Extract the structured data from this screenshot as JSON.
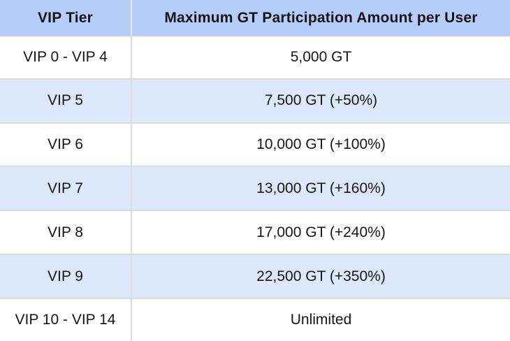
{
  "chart_data": {
    "type": "table",
    "title": "",
    "columns": [
      "VIP Tier",
      "Maximum GT Participation Amount per User"
    ],
    "rows": [
      [
        "VIP 0 - VIP 4",
        "5,000 GT"
      ],
      [
        "VIP 5",
        "7,500 GT (+50%)"
      ],
      [
        "VIP 6",
        "10,000 GT (+100%)"
      ],
      [
        "VIP 7",
        "13,000 GT (+160%)"
      ],
      [
        "VIP 8",
        "17,000 GT (+240%)"
      ],
      [
        "VIP 9",
        "22,500 GT (+350%)"
      ],
      [
        "VIP 10 - VIP 14",
        "Unlimited"
      ]
    ],
    "layout": {
      "header_position": "top",
      "zebra_striping": true,
      "blue_rows": [
        "VIP 5",
        "VIP 7",
        "VIP 9"
      ],
      "grid": true
    }
  },
  "colors": {
    "header_bg": "#b5cdf8",
    "row_alt_bg": "#dde8fb",
    "row_bg": "#ffffff",
    "border": "#d9dbe0",
    "text": "#151515"
  }
}
